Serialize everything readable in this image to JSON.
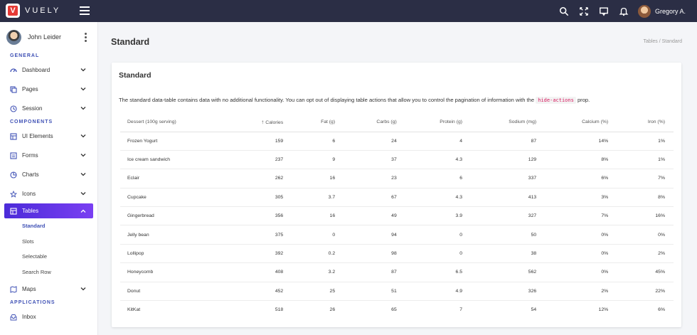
{
  "topbar": {
    "logo_letter": "V",
    "brand": "VUELY",
    "username": "Gregory A.",
    "icons": [
      "search-icon",
      "fullscreen-icon",
      "chat-icon",
      "notification-icon"
    ]
  },
  "sidebar": {
    "user_name": "John Leider",
    "sections": {
      "general": "GENERAL",
      "components": "COMPONENTS",
      "applications": "APPLICATIONS"
    },
    "general_items": [
      {
        "label": "Dashboard",
        "icon": "dashboard-icon"
      },
      {
        "label": "Pages",
        "icon": "pages-icon"
      },
      {
        "label": "Session",
        "icon": "session-icon"
      }
    ],
    "component_items": [
      {
        "label": "UI Elements",
        "icon": "ui-elements-icon"
      },
      {
        "label": "Forms",
        "icon": "forms-icon"
      },
      {
        "label": "Charts",
        "icon": "charts-icon"
      },
      {
        "label": "Icons",
        "icon": "star-icon"
      }
    ],
    "tables": {
      "label": "Tables",
      "icon": "table-icon"
    },
    "table_sub_items": [
      "Standard",
      "Slots",
      "Selectable",
      "Search Row"
    ],
    "maps": {
      "label": "Maps",
      "icon": "map-icon"
    },
    "app_items": [
      {
        "label": "Inbox",
        "icon": "inbox-icon"
      }
    ]
  },
  "page": {
    "title": "Standard",
    "breadcrumb": "Tables / Standard"
  },
  "card": {
    "title": "Standard",
    "description_before": "The standard data-table contains data with no additional functionality. You can opt out of displaying table actions that allow you to control the pagination of information with the",
    "code": "hide-actions",
    "description_after": "prop."
  },
  "table": {
    "headers": [
      "Dessert (100g serving)",
      "Calories",
      "Fat (g)",
      "Carbs (g)",
      "Protein (g)",
      "Sodium (mg)",
      "Calcium (%)",
      "Iron (%)"
    ],
    "sort_indicator": "↑",
    "rows": [
      [
        "Frozen Yogurt",
        "159",
        "6",
        "24",
        "4",
        "87",
        "14%",
        "1%"
      ],
      [
        "Ice cream sandwich",
        "237",
        "9",
        "37",
        "4.3",
        "129",
        "8%",
        "1%"
      ],
      [
        "Eclair",
        "262",
        "16",
        "23",
        "6",
        "337",
        "6%",
        "7%"
      ],
      [
        "Cupcake",
        "305",
        "3.7",
        "67",
        "4.3",
        "413",
        "3%",
        "8%"
      ],
      [
        "Gingerbread",
        "356",
        "16",
        "49",
        "3.9",
        "327",
        "7%",
        "16%"
      ],
      [
        "Jelly bean",
        "375",
        "0",
        "94",
        "0",
        "50",
        "0%",
        "0%"
      ],
      [
        "Lollipop",
        "392",
        "0.2",
        "98",
        "0",
        "38",
        "0%",
        "2%"
      ],
      [
        "Honeycomb",
        "408",
        "3.2",
        "87",
        "6.5",
        "562",
        "0%",
        "45%"
      ],
      [
        "Donut",
        "452",
        "25",
        "51",
        "4.9",
        "326",
        "2%",
        "22%"
      ],
      [
        "KitKat",
        "518",
        "26",
        "65",
        "7",
        "54",
        "12%",
        "6%"
      ]
    ]
  },
  "colors": {
    "topbar": "#2b2e45",
    "accent": "#3f51b5",
    "active_gradient_start": "#4b2bd9",
    "active_gradient_end": "#7a3ff2",
    "code": "#d81b60"
  }
}
